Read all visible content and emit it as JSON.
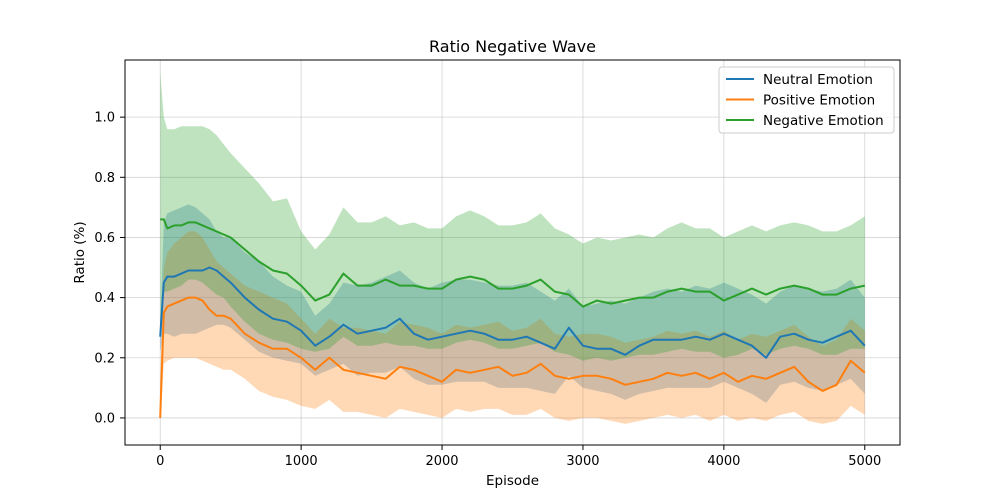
{
  "chart_data": {
    "type": "line",
    "title": "Ratio Negative Wave",
    "xlabel": "Episode",
    "ylabel": "Ratio (%)",
    "xlim": [
      -250,
      5250
    ],
    "ylim": [
      -0.09,
      1.19
    ],
    "xticks": [
      0,
      1000,
      2000,
      3000,
      4000,
      5000
    ],
    "xtick_labels": [
      "0",
      "1000",
      "2000",
      "3000",
      "4000",
      "5000"
    ],
    "yticks": [
      0.0,
      0.2,
      0.4,
      0.6,
      0.8,
      1.0
    ],
    "ytick_labels": [
      "0.0",
      "0.2",
      "0.4",
      "0.6",
      "0.8",
      "1.0"
    ],
    "grid": true,
    "legend_position": "top-right",
    "x": [
      0,
      25,
      50,
      100,
      150,
      200,
      250,
      300,
      350,
      400,
      450,
      500,
      600,
      700,
      800,
      900,
      1000,
      1100,
      1200,
      1300,
      1400,
      1500,
      1600,
      1700,
      1800,
      1900,
      2000,
      2100,
      2200,
      2300,
      2400,
      2500,
      2600,
      2700,
      2800,
      2900,
      3000,
      3100,
      3200,
      3300,
      3400,
      3500,
      3600,
      3700,
      3800,
      3900,
      4000,
      4100,
      4200,
      4300,
      4400,
      4500,
      4600,
      4700,
      4800,
      4900,
      5000
    ],
    "series": [
      {
        "name": "Neutral Emotion",
        "color": "#1f77b4",
        "values": [
          0.27,
          0.45,
          0.47,
          0.47,
          0.48,
          0.49,
          0.49,
          0.49,
          0.5,
          0.49,
          0.47,
          0.45,
          0.4,
          0.36,
          0.33,
          0.32,
          0.29,
          0.24,
          0.27,
          0.31,
          0.28,
          0.29,
          0.3,
          0.33,
          0.28,
          0.26,
          0.27,
          0.28,
          0.29,
          0.28,
          0.26,
          0.26,
          0.27,
          0.25,
          0.23,
          0.3,
          0.24,
          0.23,
          0.23,
          0.21,
          0.24,
          0.26,
          0.26,
          0.26,
          0.27,
          0.26,
          0.28,
          0.26,
          0.24,
          0.2,
          0.27,
          0.28,
          0.26,
          0.25,
          0.27,
          0.29,
          0.24
        ],
        "upper": [
          0.3,
          0.65,
          0.68,
          0.69,
          0.7,
          0.71,
          0.7,
          0.68,
          0.66,
          0.62,
          0.6,
          0.6,
          0.55,
          0.52,
          0.47,
          0.44,
          0.42,
          0.34,
          0.38,
          0.45,
          0.44,
          0.45,
          0.47,
          0.49,
          0.45,
          0.43,
          0.45,
          0.46,
          0.46,
          0.45,
          0.44,
          0.44,
          0.45,
          0.42,
          0.39,
          0.43,
          0.37,
          0.38,
          0.39,
          0.38,
          0.4,
          0.42,
          0.43,
          0.42,
          0.44,
          0.43,
          0.45,
          0.43,
          0.41,
          0.38,
          0.42,
          0.44,
          0.43,
          0.42,
          0.43,
          0.46,
          0.4
        ],
        "lower": [
          0.22,
          0.28,
          0.28,
          0.27,
          0.28,
          0.28,
          0.28,
          0.29,
          0.3,
          0.31,
          0.31,
          0.3,
          0.26,
          0.22,
          0.2,
          0.19,
          0.18,
          0.14,
          0.16,
          0.18,
          0.14,
          0.15,
          0.15,
          0.17,
          0.13,
          0.11,
          0.11,
          0.12,
          0.12,
          0.12,
          0.1,
          0.1,
          0.1,
          0.09,
          0.08,
          0.14,
          0.1,
          0.09,
          0.08,
          0.06,
          0.08,
          0.09,
          0.1,
          0.1,
          0.1,
          0.1,
          0.12,
          0.1,
          0.08,
          0.05,
          0.11,
          0.12,
          0.1,
          0.09,
          0.11,
          0.13,
          0.08
        ]
      },
      {
        "name": "Positive Emotion",
        "color": "#ff7f0e",
        "values": [
          0.0,
          0.35,
          0.37,
          0.38,
          0.39,
          0.4,
          0.4,
          0.39,
          0.36,
          0.34,
          0.34,
          0.33,
          0.28,
          0.25,
          0.23,
          0.23,
          0.2,
          0.16,
          0.2,
          0.16,
          0.15,
          0.14,
          0.13,
          0.17,
          0.16,
          0.14,
          0.12,
          0.16,
          0.15,
          0.16,
          0.17,
          0.14,
          0.15,
          0.18,
          0.14,
          0.13,
          0.14,
          0.14,
          0.13,
          0.11,
          0.12,
          0.13,
          0.15,
          0.14,
          0.15,
          0.13,
          0.15,
          0.12,
          0.14,
          0.13,
          0.15,
          0.17,
          0.12,
          0.09,
          0.11,
          0.19,
          0.15
        ],
        "upper": [
          0.12,
          0.5,
          0.55,
          0.58,
          0.6,
          0.62,
          0.62,
          0.6,
          0.56,
          0.52,
          0.5,
          0.48,
          0.44,
          0.42,
          0.4,
          0.38,
          0.33,
          0.28,
          0.33,
          0.3,
          0.3,
          0.29,
          0.28,
          0.32,
          0.31,
          0.3,
          0.28,
          0.31,
          0.3,
          0.31,
          0.32,
          0.29,
          0.3,
          0.33,
          0.28,
          0.27,
          0.28,
          0.28,
          0.27,
          0.25,
          0.26,
          0.27,
          0.29,
          0.28,
          0.29,
          0.27,
          0.29,
          0.26,
          0.28,
          0.27,
          0.29,
          0.31,
          0.27,
          0.24,
          0.26,
          0.33,
          0.29
        ],
        "lower": [
          -0.01,
          0.18,
          0.19,
          0.2,
          0.2,
          0.2,
          0.2,
          0.19,
          0.18,
          0.17,
          0.16,
          0.16,
          0.13,
          0.09,
          0.07,
          0.06,
          0.04,
          0.03,
          0.06,
          0.02,
          0.02,
          0.01,
          0.0,
          0.03,
          0.02,
          0.01,
          0.0,
          0.03,
          0.02,
          0.03,
          0.03,
          0.01,
          0.01,
          0.03,
          0.0,
          -0.01,
          0.0,
          0.0,
          -0.01,
          -0.02,
          -0.01,
          0.0,
          0.01,
          0.0,
          0.01,
          -0.01,
          0.01,
          -0.01,
          0.0,
          -0.01,
          0.01,
          0.02,
          -0.01,
          -0.02,
          -0.01,
          0.04,
          0.01
        ]
      },
      {
        "name": "Negative Emotion",
        "color": "#2ca02c",
        "values": [
          0.66,
          0.66,
          0.63,
          0.64,
          0.64,
          0.65,
          0.65,
          0.64,
          0.63,
          0.62,
          0.61,
          0.6,
          0.56,
          0.52,
          0.49,
          0.48,
          0.44,
          0.39,
          0.41,
          0.48,
          0.44,
          0.44,
          0.46,
          0.44,
          0.44,
          0.43,
          0.43,
          0.46,
          0.47,
          0.46,
          0.43,
          0.43,
          0.44,
          0.46,
          0.42,
          0.41,
          0.37,
          0.39,
          0.38,
          0.39,
          0.4,
          0.4,
          0.42,
          0.43,
          0.42,
          0.42,
          0.39,
          0.41,
          0.43,
          0.41,
          0.43,
          0.44,
          0.43,
          0.41,
          0.41,
          0.43,
          0.44
        ],
        "upper": [
          1.15,
          1.0,
          0.96,
          0.96,
          0.97,
          0.97,
          0.97,
          0.97,
          0.96,
          0.94,
          0.91,
          0.88,
          0.83,
          0.78,
          0.72,
          0.73,
          0.62,
          0.56,
          0.61,
          0.7,
          0.65,
          0.65,
          0.67,
          0.64,
          0.65,
          0.63,
          0.63,
          0.67,
          0.69,
          0.67,
          0.64,
          0.64,
          0.65,
          0.68,
          0.63,
          0.61,
          0.58,
          0.6,
          0.59,
          0.6,
          0.61,
          0.6,
          0.63,
          0.65,
          0.63,
          0.63,
          0.6,
          0.62,
          0.64,
          0.62,
          0.64,
          0.65,
          0.64,
          0.62,
          0.62,
          0.64,
          0.67
        ],
        "lower": [
          0.26,
          0.42,
          0.42,
          0.43,
          0.44,
          0.46,
          0.46,
          0.45,
          0.43,
          0.41,
          0.4,
          0.37,
          0.32,
          0.28,
          0.26,
          0.25,
          0.23,
          0.22,
          0.23,
          0.27,
          0.24,
          0.24,
          0.25,
          0.24,
          0.24,
          0.23,
          0.23,
          0.25,
          0.26,
          0.25,
          0.23,
          0.23,
          0.24,
          0.25,
          0.22,
          0.21,
          0.19,
          0.2,
          0.19,
          0.2,
          0.21,
          0.21,
          0.22,
          0.23,
          0.22,
          0.22,
          0.2,
          0.21,
          0.23,
          0.21,
          0.23,
          0.24,
          0.23,
          0.21,
          0.21,
          0.23,
          0.23
        ]
      }
    ]
  }
}
